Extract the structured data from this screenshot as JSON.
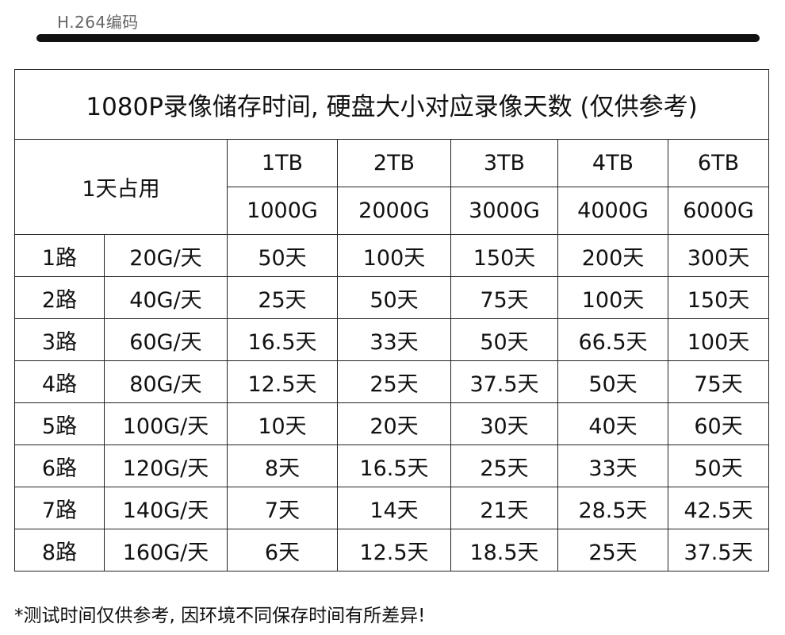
{
  "header": {
    "encoding_label": "H.264编码"
  },
  "table": {
    "title": "1080P录像储存时间, 硬盘大小对应录像天数 (仅供参考)",
    "daily_usage_label": "1天占用",
    "capacities": [
      {
        "tb": "1TB",
        "gb": "1000G"
      },
      {
        "tb": "2TB",
        "gb": "2000G"
      },
      {
        "tb": "3TB",
        "gb": "3000G"
      },
      {
        "tb": "4TB",
        "gb": "4000G"
      },
      {
        "tb": "6TB",
        "gb": "6000G"
      }
    ],
    "rows": [
      {
        "channels": "1路",
        "usage": "20G/天",
        "days": [
          "50天",
          "100天",
          "150天",
          "200天",
          "300天"
        ]
      },
      {
        "channels": "2路",
        "usage": "40G/天",
        "days": [
          "25天",
          "50天",
          "75天",
          "100天",
          "150天"
        ]
      },
      {
        "channels": "3路",
        "usage": "60G/天",
        "days": [
          "16.5天",
          "33天",
          "50天",
          "66.5天",
          "100天"
        ]
      },
      {
        "channels": "4路",
        "usage": "80G/天",
        "days": [
          "12.5天",
          "25天",
          "37.5天",
          "50天",
          "75天"
        ]
      },
      {
        "channels": "5路",
        "usage": "100G/天",
        "days": [
          "10天",
          "20天",
          "30天",
          "40天",
          "60天"
        ]
      },
      {
        "channels": "6路",
        "usage": "120G/天",
        "days": [
          "8天",
          "16.5天",
          "25天",
          "33天",
          "50天"
        ]
      },
      {
        "channels": "7路",
        "usage": "140G/天",
        "days": [
          "7天",
          "14天",
          "21天",
          "28.5天",
          "42.5天"
        ]
      },
      {
        "channels": "8路",
        "usage": "160G/天",
        "days": [
          "6天",
          "12.5天",
          "18.5天",
          "25天",
          "37.5天"
        ]
      }
    ]
  },
  "footnote": "*测试时间仅供参考, 因环境不同保存时间有所差异!"
}
